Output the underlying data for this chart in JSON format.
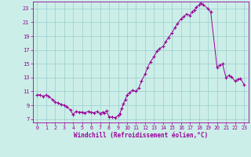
{
  "line_color": "#990099",
  "bg_color": "#cceee8",
  "grid_color": "#99cccc",
  "axis_color": "#990099",
  "xlabel": "Windchill (Refroidissement éolien,°C)",
  "xlim": [
    -0.5,
    23.5
  ],
  "ylim": [
    6.5,
    24.0
  ],
  "yticks": [
    7,
    9,
    11,
    13,
    15,
    17,
    19,
    21,
    23
  ],
  "xticks": [
    0,
    1,
    2,
    3,
    4,
    5,
    6,
    7,
    8,
    9,
    10,
    11,
    12,
    13,
    14,
    15,
    16,
    17,
    18,
    19,
    20,
    21,
    22,
    23
  ],
  "x_data": [
    0,
    0.3,
    0.7,
    1.0,
    1.3,
    1.7,
    2.0,
    2.3,
    2.7,
    3.0,
    3.3,
    3.7,
    4.0,
    4.3,
    4.7,
    5.0,
    5.3,
    5.7,
    6.0,
    6.3,
    6.7,
    7.0,
    7.3,
    7.5,
    7.7,
    8.0,
    8.3,
    8.7,
    9.0,
    9.2,
    9.4,
    9.6,
    9.8,
    10.0,
    10.3,
    10.6,
    11.0,
    11.3,
    11.6,
    12.0,
    12.3,
    12.6,
    13.0,
    13.3,
    13.6,
    14.0,
    14.3,
    14.6,
    15.0,
    15.3,
    15.6,
    16.0,
    16.3,
    16.6,
    17.0,
    17.2,
    17.5,
    17.7,
    18.0,
    18.2,
    18.5,
    19.0,
    19.3,
    20.0,
    20.3,
    20.6,
    21.0,
    21.3,
    21.6,
    22.0,
    22.3,
    22.6,
    23.0
  ],
  "y_data": [
    10.5,
    10.5,
    10.3,
    10.5,
    10.3,
    9.8,
    9.5,
    9.3,
    9.1,
    9.0,
    8.8,
    8.3,
    7.6,
    8.1,
    8.0,
    8.0,
    7.9,
    8.1,
    8.0,
    7.9,
    8.1,
    7.8,
    8.0,
    7.9,
    8.2,
    7.3,
    7.3,
    7.2,
    7.5,
    7.8,
    8.5,
    9.2,
    9.8,
    10.5,
    10.8,
    11.2,
    11.0,
    11.5,
    12.5,
    13.5,
    14.5,
    15.3,
    16.0,
    16.8,
    17.2,
    17.5,
    18.2,
    18.8,
    19.5,
    20.2,
    20.8,
    21.5,
    21.8,
    22.2,
    22.0,
    22.5,
    22.8,
    23.2,
    23.5,
    23.8,
    23.5,
    23.0,
    22.5,
    14.5,
    14.8,
    15.0,
    13.0,
    13.3,
    13.1,
    12.5,
    12.7,
    12.9,
    12.0
  ]
}
